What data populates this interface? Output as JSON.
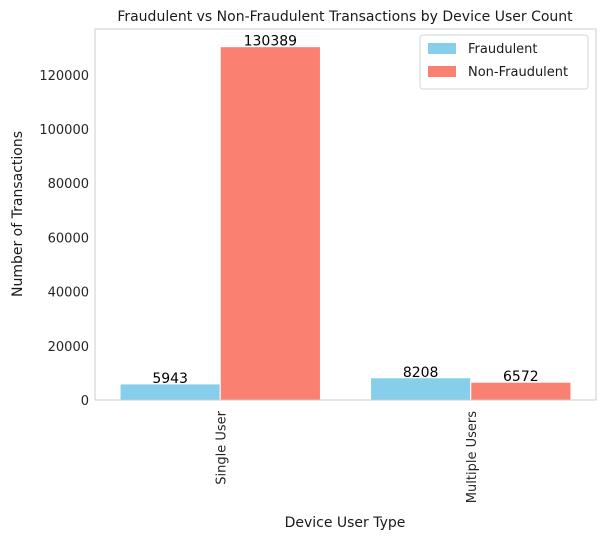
{
  "chart_data": {
    "type": "bar",
    "title": "Fraudulent vs Non-Fraudulent Transactions by Device User Count",
    "xlabel": "Device User Type",
    "ylabel": "Number of Transactions",
    "categories": [
      "Single User",
      "Multiple Users"
    ],
    "series": [
      {
        "name": "Fraudulent",
        "color": "#87ceeb",
        "values": [
          5943,
          8208
        ]
      },
      {
        "name": "Non-Fraudulent",
        "color": "#fa8072",
        "values": [
          130389,
          6572
        ]
      }
    ],
    "data_labels": [
      [
        "5943",
        "8208"
      ],
      [
        "130389",
        "6572"
      ]
    ],
    "yticks": [
      0,
      20000,
      40000,
      60000,
      80000,
      100000,
      120000
    ],
    "ylim": [
      0,
      136910
    ],
    "grid": false,
    "legend_position": "top-right"
  }
}
